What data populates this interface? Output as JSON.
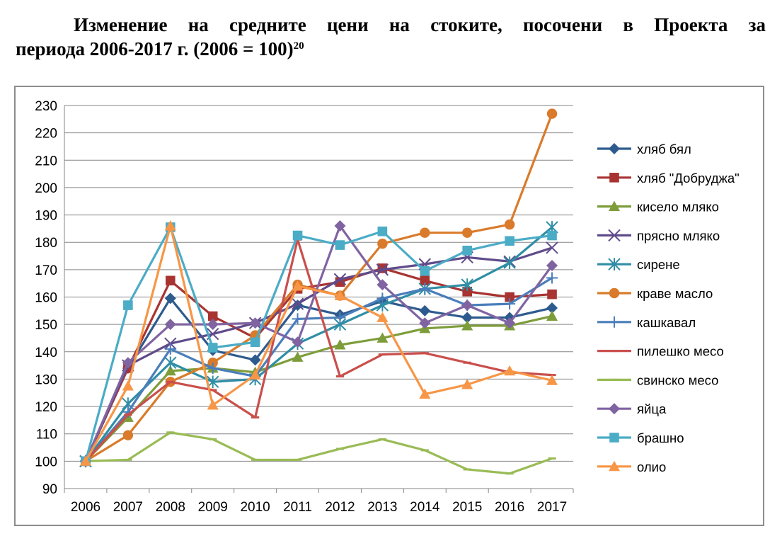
{
  "heading": {
    "line1": "Изменение на средните цени на стоките, посочени в Проекта за",
    "line2": "периода 2006-2017 г. (2006 = 100)",
    "footnote": "20"
  },
  "chart_data": {
    "type": "line",
    "title": "",
    "xlabel": "",
    "ylabel": "",
    "ylim": [
      90,
      230
    ],
    "yticks": [
      90,
      100,
      110,
      120,
      130,
      140,
      150,
      160,
      170,
      180,
      190,
      200,
      210,
      220,
      230
    ],
    "grid": true,
    "legend_position": "right",
    "x": [
      "2006",
      "2007",
      "2008",
      "2009",
      "2010",
      "2011",
      "2012",
      "2013",
      "2014",
      "2015",
      "2016",
      "2017"
    ],
    "series": [
      {
        "name": "хляб бял",
        "color": "#2e5b8e",
        "marker": "diamond",
        "values": [
          100,
          134,
          159.5,
          140.5,
          137,
          157,
          153.5,
          158.5,
          155,
          152.5,
          152.5,
          156
        ]
      },
      {
        "name": "хляб \"Добруджа\"",
        "color": "#a83432",
        "marker": "square",
        "values": [
          100,
          134,
          166,
          153,
          145,
          163,
          165.5,
          170.5,
          166,
          162,
          160,
          161
        ]
      },
      {
        "name": "кисело мляко",
        "color": "#7d9d3a",
        "marker": "triangle",
        "values": [
          100,
          116,
          133,
          134,
          132.5,
          138,
          142.5,
          145,
          148.5,
          149.5,
          149.5,
          153
        ]
      },
      {
        "name": "прясно мляко",
        "color": "#5f4b8b",
        "marker": "x",
        "values": [
          100,
          135,
          143,
          146.5,
          150.5,
          157.5,
          166.5,
          170,
          172,
          174.5,
          173,
          178
        ]
      },
      {
        "name": "сирене",
        "color": "#2f8ea5",
        "marker": "star",
        "values": [
          100,
          121,
          136,
          129,
          130,
          143,
          150,
          157,
          163,
          164.5,
          172.5,
          185.5
        ]
      },
      {
        "name": "краве масло",
        "color": "#d97b2b",
        "marker": "circle",
        "values": [
          100,
          109.5,
          129,
          136,
          146,
          164.5,
          160.5,
          179.5,
          183.5,
          183.5,
          186.5,
          227
        ]
      },
      {
        "name": "кашкавал",
        "color": "#4a7ebb",
        "marker": "plus",
        "values": [
          100,
          118,
          141,
          134,
          131,
          152,
          152.5,
          159.5,
          163,
          157,
          157.5,
          167
        ]
      },
      {
        "name": "пилешко месо",
        "color": "#c94f4c",
        "marker": "dash",
        "values": [
          100,
          117,
          129,
          126,
          116,
          181,
          131,
          139,
          139.5,
          136,
          132.5,
          131.5
        ]
      },
      {
        "name": "свинско месо",
        "color": "#99bb55",
        "marker": "dash",
        "values": [
          100,
          100.5,
          110.5,
          108,
          100.5,
          100.5,
          104.5,
          108,
          104,
          97,
          95.5,
          101
        ]
      },
      {
        "name": "яйца",
        "color": "#8064a2",
        "marker": "diamond",
        "values": [
          100,
          136,
          150,
          150,
          150.5,
          143.5,
          186,
          164.5,
          150.5,
          157,
          150.5,
          171.5
        ]
      },
      {
        "name": "брашно",
        "color": "#4bacc6",
        "marker": "square",
        "values": [
          100,
          157,
          185.5,
          141.5,
          143.5,
          182.5,
          179,
          184,
          169.5,
          177,
          180.5,
          182.5
        ]
      },
      {
        "name": "олио",
        "color": "#f79646",
        "marker": "triangle",
        "values": [
          100,
          127.5,
          186,
          120.5,
          131.5,
          164,
          160.5,
          152.5,
          124.5,
          128,
          133,
          129.5
        ]
      }
    ]
  }
}
